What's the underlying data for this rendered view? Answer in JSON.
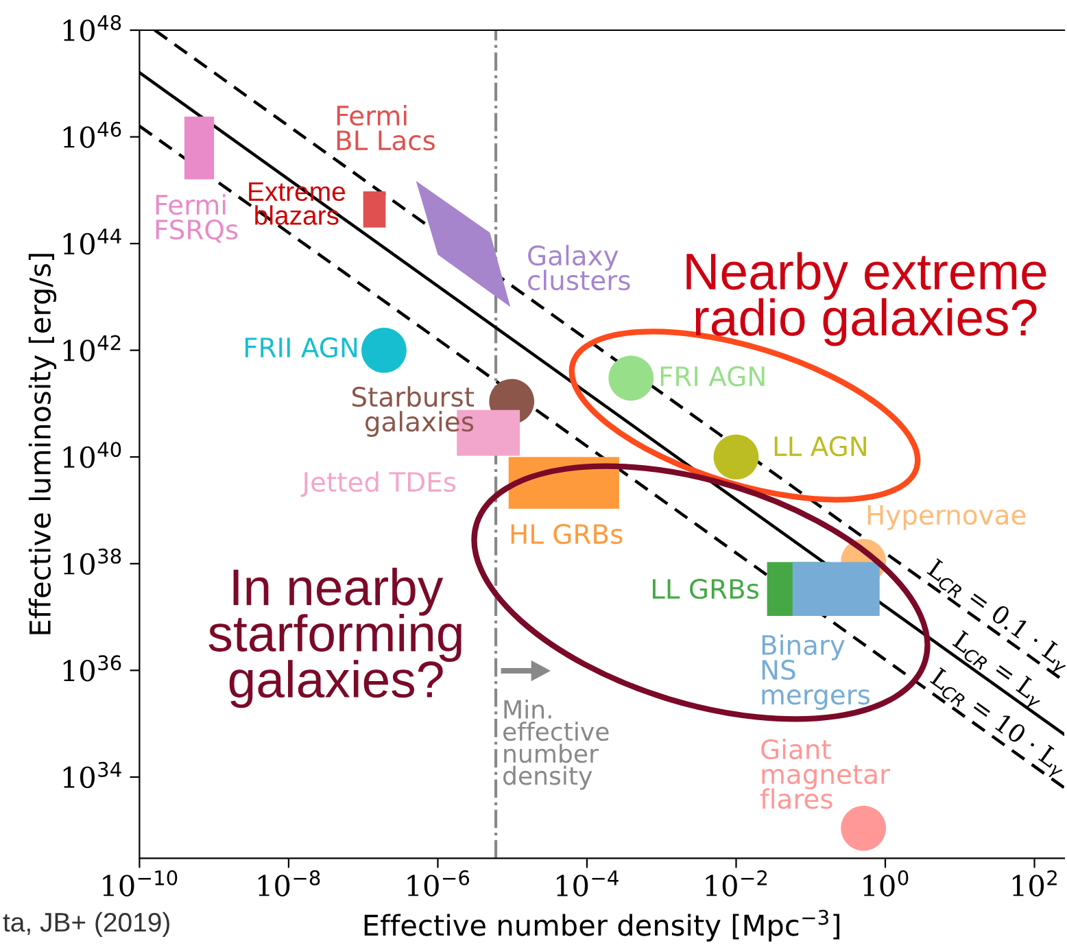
{
  "chart_data": {
    "type": "scatter",
    "log": "xy",
    "xlabel": "Effective number density [Mpc$^{−3}$]",
    "ylabel": "Effective luminosity [erg/s]",
    "xlim": [
      1e-10,
      251
    ],
    "ylim": [
      3e+32,
      1e+48
    ],
    "xticks": [
      {
        "value": 1e-10,
        "label": "10$^{−10}$"
      },
      {
        "value": 1e-08,
        "label": "10$^{−8}$"
      },
      {
        "value": 1e-06,
        "label": "10$^{−6}$"
      },
      {
        "value": 0.0001,
        "label": "10$^{−4}$"
      },
      {
        "value": 0.01,
        "label": "10$^{−2}$"
      },
      {
        "value": 1,
        "label": "10$^{0}$"
      },
      {
        "value": 100,
        "label": "10$^{2}$"
      }
    ],
    "yticks": [
      {
        "value": 1e+34,
        "label": "10$^{34}$"
      },
      {
        "value": 1e+36,
        "label": "10$^{36}$"
      },
      {
        "value": 1e+38,
        "label": "10$^{38}$"
      },
      {
        "value": 1e+40,
        "label": "10$^{40}$"
      },
      {
        "value": 1e+42,
        "label": "10$^{42}$"
      },
      {
        "value": 1e+44,
        "label": "10$^{44}$"
      },
      {
        "value": 1e+46,
        "label": "10$^{46}$"
      },
      {
        "value": 1e+48,
        "label": "10$^{48}$"
      }
    ],
    "series": [
      {
        "type": "area",
        "name": "Fermi\nFSRQs",
        "color": "#e88bc8",
        "x": [
          4e-10,
          1e-09,
          1e-09,
          4e-10
        ],
        "values": [
          2.4e+46,
          2.4e+46,
          1.6e+45,
          1.6e+45
        ]
      },
      {
        "type": "area",
        "name": "Fermi\nBL Lacs",
        "color": "#e05050",
        "x": [
          1e-07,
          2e-07,
          2e-07,
          1e-07
        ],
        "values": [
          9.5e+44,
          9.5e+44,
          2e+44,
          2e+44
        ]
      },
      {
        "type": "area",
        "name": "Galaxy\nclusters",
        "color": "#a685cc",
        "x": [
          5.1e-07,
          5e-06,
          9.4e-06,
          1e-06
        ],
        "values": [
          1.5e+45,
          1.6e+44,
          6.5e+42,
          6.2e+43
        ]
      },
      {
        "type": "area",
        "name": "Jetted TDEs",
        "color": "#f2a6cc",
        "x": [
          1.8e-06,
          1.26e-05,
          1.26e-05,
          1.8e-06
        ],
        "values": [
          7.6e+40,
          7.6e+40,
          1.05e+40,
          1.05e+40
        ]
      },
      {
        "type": "area",
        "name": "HL GRBs",
        "color": "#ff9a3c",
        "x": [
          8.9e-06,
          0.00027,
          0.00027,
          8.9e-06
        ],
        "values": [
          1e+40,
          1e+40,
          1.07e+39,
          1.07e+39
        ]
      },
      {
        "type": "area",
        "name": "LL GRBs",
        "color": "#45a845",
        "x": [
          0.026,
          0.18,
          0.18,
          0.026
        ],
        "values": [
          1.07e+38,
          1.07e+38,
          1.05e+37,
          1.05e+37
        ]
      },
      {
        "type": "area",
        "name": "Binary\nNS\nmergers",
        "color": "#76acd6",
        "x": [
          0.057,
          0.84,
          0.84,
          0.057
        ],
        "values": [
          1.07e+38,
          1.07e+38,
          1.05e+37,
          1.05e+37
        ]
      },
      {
        "type": "line",
        "name": "L$_{CR}$ = 0.1 · L$_{γ}$",
        "color": "#000000",
        "line_style": "dashed",
        "x": [
          1.6e-10,
          251
        ],
        "values": [
          1e+48,
          6.3e+35
        ]
      },
      {
        "type": "line",
        "name": "L$_{CR}$ = L$_{γ}$",
        "color": "#000000",
        "line_style": "solid",
        "x": [
          1e-10,
          251
        ],
        "values": [
          1.6e+47,
          6.3e+34
        ]
      },
      {
        "type": "line",
        "name": "L$_{CR}$ = 10 · L$_{γ}$",
        "color": "#000000",
        "line_style": "dashed",
        "x": [
          1e-10,
          251
        ],
        "values": [
          1.6e+46,
          6.3e+33
        ]
      },
      {
        "marker": "circle",
        "name": "FRII AGN",
        "color": "#17becf",
        "x": [
          1.9e-07
        ],
        "values": [
          1e+42
        ]
      },
      {
        "marker": "circle",
        "name": "Starburst\ngalaxies",
        "color": "#8c564b",
        "x": [
          9.8e-06
        ],
        "values": [
          1.1e+41
        ]
      },
      {
        "marker": "circle",
        "name": "FRI AGN",
        "color": "#98df8a",
        "x": [
          0.00039
        ],
        "values": [
          3e+41
        ]
      },
      {
        "marker": "circle",
        "name": "LL AGN",
        "color": "#bcbd22",
        "x": [
          0.01
        ],
        "values": [
          1e+40
        ]
      },
      {
        "marker": "circle",
        "name": "Hypernovae",
        "color": "#ffbb78",
        "x": [
          0.51
        ],
        "values": [
          1.1e+38
        ]
      },
      {
        "marker": "circle",
        "name": "Giant\nmagnetar\nflares",
        "color": "#ff9896",
        "x": [
          0.51
        ],
        "values": [
          1.1e+33
        ]
      }
    ],
    "ref_lines": [
      {
        "axis": "x",
        "value": 6e-06,
        "label": "Min.\neffective\nnumber\ndensity",
        "color": "#888888",
        "line_style": "dashdot"
      }
    ],
    "annotations": [
      "Extreme\nblazars",
      "Nearby extreme\nradio galaxies?",
      "In nearby\nstarforming\ngalaxies?",
      "ta, JB+ (2019)"
    ]
  }
}
